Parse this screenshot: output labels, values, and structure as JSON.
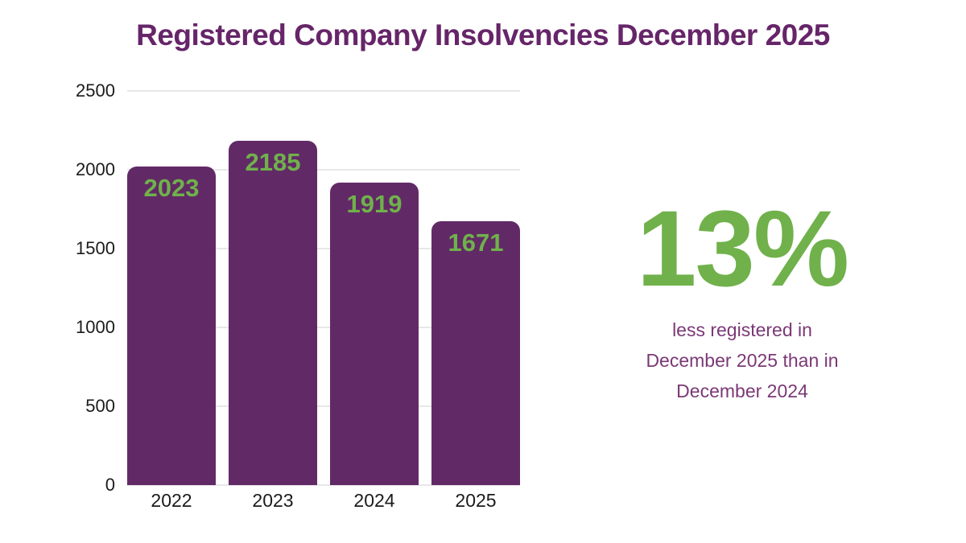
{
  "title": "Registered Company Insolvencies December 2025",
  "colors": {
    "title": "#662569",
    "bar": "#612a66",
    "bar_value_label": "#70b14b",
    "stat_green": "#70b14b",
    "caption_purple": "#7b3876",
    "gridline": "#e7e7e7",
    "axis_text": "#1b1b1b",
    "background": "#ffffff"
  },
  "chart_data": {
    "type": "bar",
    "title": "Registered Company Insolvencies December 2025",
    "categories": [
      "2022",
      "2023",
      "2024",
      "2025"
    ],
    "values": [
      2023,
      2185,
      1919,
      1671
    ],
    "xlabel": "",
    "ylabel": "",
    "ylim": [
      0,
      2500
    ],
    "yticks": [
      0,
      500,
      1000,
      1500,
      2000,
      2500
    ],
    "grid": true,
    "legend": false,
    "value_labels": "inside-top"
  },
  "stat": {
    "value": "13%",
    "caption_lines": [
      "less registered in",
      "December 2025 than in",
      "December 2024"
    ]
  }
}
